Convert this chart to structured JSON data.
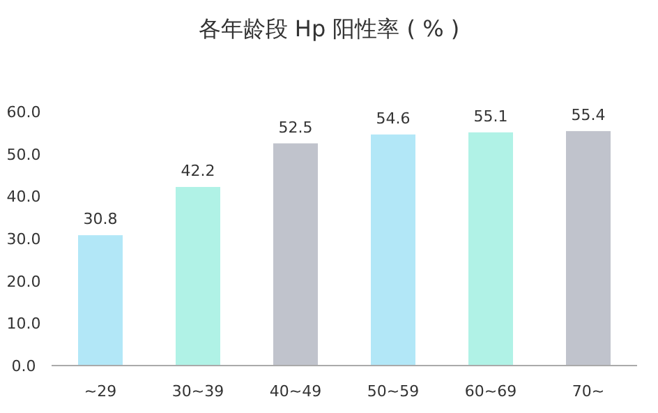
{
  "chart_data": {
    "type": "bar",
    "title": "各年龄段 Hp 阳性率 ( % )",
    "categories": [
      "~29",
      "30~39",
      "40~49",
      "50~59",
      "60~69",
      "70~"
    ],
    "values": [
      30.8,
      42.2,
      52.5,
      54.6,
      55.1,
      55.4
    ],
    "colors": [
      "#b2e7f7",
      "#b0f2e6",
      "#c0c3cc",
      "#b2e7f7",
      "#b0f2e6",
      "#c0c3cc"
    ],
    "ylim": [
      0,
      60
    ],
    "yticks": [
      {
        "value": 0,
        "label": "0.0"
      },
      {
        "value": 10,
        "label": "10.0"
      },
      {
        "value": 20,
        "label": "20.0"
      },
      {
        "value": 30,
        "label": "30.0"
      },
      {
        "value": 40,
        "label": "40.0"
      },
      {
        "value": 50,
        "label": "50.0"
      },
      {
        "value": 60,
        "label": "60.0"
      }
    ],
    "data_labels": true
  }
}
